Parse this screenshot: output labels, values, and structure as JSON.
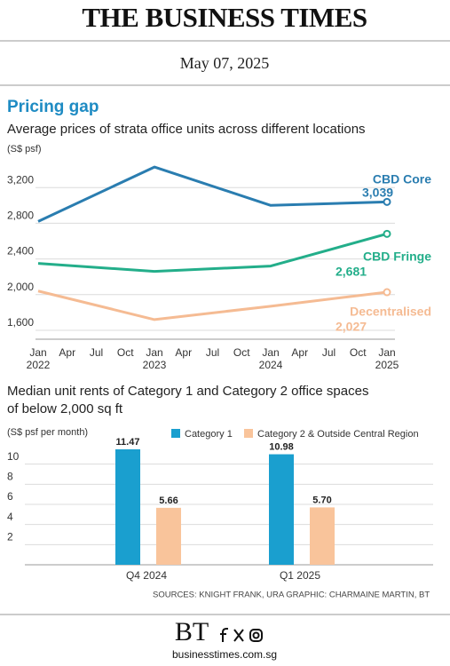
{
  "masthead": "THE BUSINESS TIMES",
  "date": "May 07, 2025",
  "source": "SOURCES: KNIGHT FRANK, URA   GRAPHIC: CHARMAINE MARTIN, BT",
  "footer": {
    "logo": "BT",
    "url": "businesstimes.com.sg"
  },
  "chart_data": [
    {
      "type": "line",
      "title": "Pricing gap",
      "subtitle": "Average prices of strata office units across different locations",
      "y_label": "(S$ psf)",
      "x": [
        "Jan 2022",
        "Jan 2023",
        "Jan 2024",
        "Jan 2025"
      ],
      "xticks": [
        "Jan 2022",
        "Apr",
        "Jul",
        "Oct",
        "Jan 2023",
        "Apr",
        "Jul",
        "Oct",
        "Jan 2024",
        "Apr",
        "Jul",
        "Oct",
        "Jan 2025"
      ],
      "ylim": [
        1500,
        3600
      ],
      "yticks": [
        {
          "value": 1600,
          "label": "1,600"
        },
        {
          "value": 2000,
          "label": "2,000"
        },
        {
          "value": 2400,
          "label": "2,400"
        },
        {
          "value": 2800,
          "label": "2,800"
        },
        {
          "value": 3200,
          "label": "3,200"
        }
      ],
      "grid": true,
      "series": [
        {
          "name": "CBD Core",
          "color": "#2a7db0",
          "values": [
            2820,
            3430,
            3000,
            3039
          ],
          "value_labels": [
            null,
            null,
            null,
            "3,039"
          ]
        },
        {
          "name": "CBD Fringe",
          "color": "#23ae8a",
          "values": [
            2350,
            2260,
            2320,
            2681
          ],
          "value_labels": [
            null,
            null,
            null,
            "2,681"
          ]
        },
        {
          "name": "Decentralised",
          "color": "#f5bb93",
          "values": [
            2040,
            1720,
            1870,
            2027
          ],
          "value_labels": [
            null,
            null,
            null,
            "2,027"
          ]
        }
      ]
    },
    {
      "type": "bar",
      "title": "Median unit rents of Category 1 and Category 2 office spaces of below 2,000 sq ft",
      "y_label": "(S$ psf per month)",
      "categories": [
        "Q4 2024",
        "Q1 2025"
      ],
      "ylim": [
        0,
        12
      ],
      "yticks": [
        2,
        4,
        6,
        8,
        10
      ],
      "grid": true,
      "series": [
        {
          "name": "Category 1",
          "color": "#1a9fcf",
          "values": [
            11.47,
            10.98
          ],
          "value_labels": [
            "11.47",
            "10.98"
          ]
        },
        {
          "name": "Category 2 & Outside Central Region",
          "color": "#f9c49b",
          "values": [
            5.66,
            5.7
          ],
          "value_labels": [
            "5.66",
            "5.70"
          ]
        }
      ]
    }
  ]
}
